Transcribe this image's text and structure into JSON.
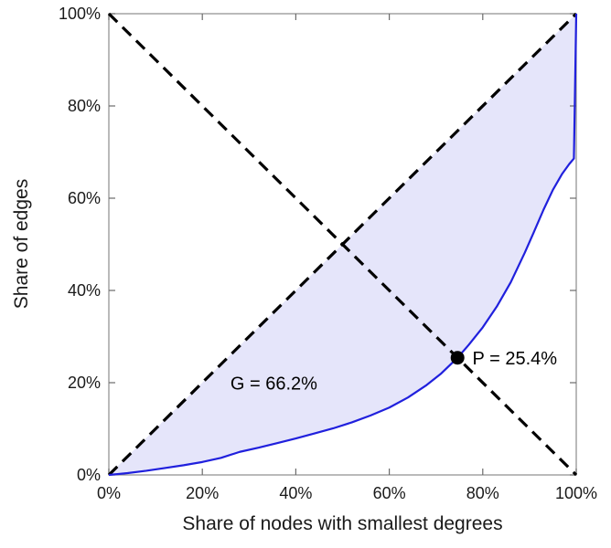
{
  "figure": {
    "background": "#ffffff"
  },
  "chart_data": {
    "type": "line",
    "title": "",
    "xlabel": "Share of nodes with smallest degrees",
    "ylabel": "Share of edges",
    "xlim": [
      0,
      100
    ],
    "ylim": [
      0,
      100
    ],
    "tick_values": [
      0,
      20,
      40,
      60,
      80,
      100
    ],
    "xtick_labels": [
      "0%",
      "20%",
      "40%",
      "60%",
      "80%",
      "100%"
    ],
    "ytick_labels": [
      "0%",
      "20%",
      "40%",
      "60%",
      "80%",
      "100%"
    ],
    "grid": false,
    "legend": "none",
    "axes_style": {
      "box_color": "#8c8c8c",
      "tick_color": "#6b6b6b",
      "tick_label_color": "#1a1a1a",
      "tick_label_size": 18
    },
    "series": [
      {
        "name": "lorenz-curve",
        "type": "line",
        "color": "#2020dd",
        "width": 2.2,
        "fill_between_diagonal": true,
        "fill_color": "#6e6ee1",
        "fill_opacity": 0.18,
        "points": [
          [
            0,
            0
          ],
          [
            4,
            0.4
          ],
          [
            8,
            0.9
          ],
          [
            12,
            1.5
          ],
          [
            16,
            2.1
          ],
          [
            20,
            2.8
          ],
          [
            24,
            3.7
          ],
          [
            28,
            5.0
          ],
          [
            32,
            5.9
          ],
          [
            36,
            6.9
          ],
          [
            40,
            7.9
          ],
          [
            44,
            9.0
          ],
          [
            48,
            10.1
          ],
          [
            52,
            11.4
          ],
          [
            56,
            12.9
          ],
          [
            60,
            14.6
          ],
          [
            64,
            16.8
          ],
          [
            68,
            19.5
          ],
          [
            71,
            21.9
          ],
          [
            74.6,
            25.4
          ],
          [
            77,
            28.2
          ],
          [
            80,
            32.0
          ],
          [
            83,
            36.5
          ],
          [
            86,
            41.8
          ],
          [
            89,
            48.2
          ],
          [
            91,
            52.8
          ],
          [
            93,
            57.5
          ],
          [
            95,
            61.8
          ],
          [
            97,
            65.3
          ],
          [
            98.5,
            67.4
          ],
          [
            99.5,
            68.6
          ],
          [
            100,
            100
          ]
        ]
      },
      {
        "name": "equality-diagonal",
        "type": "line",
        "style": "dashed",
        "color": "#000000",
        "width": 3.2,
        "points": [
          [
            0,
            0
          ],
          [
            100,
            100
          ]
        ]
      },
      {
        "name": "anti-diagonal",
        "type": "line",
        "style": "dashed",
        "color": "#000000",
        "width": 3.2,
        "points": [
          [
            0,
            100
          ],
          [
            100,
            0
          ]
        ]
      }
    ],
    "marker": {
      "name": "p-marker",
      "x": 74.6,
      "y": 25.4,
      "color": "#000000",
      "radius": 7.5
    },
    "annotations": [
      {
        "name": "gini-label",
        "label": "G = 66.2%",
        "x": 26,
        "y": 18.5,
        "ha": "start",
        "color": "#000000",
        "size": 20
      },
      {
        "name": "p-label",
        "label": "P = 25.4%",
        "x": 77.8,
        "y": 24.0,
        "ha": "start",
        "color": "#000000",
        "size": 20
      }
    ]
  }
}
